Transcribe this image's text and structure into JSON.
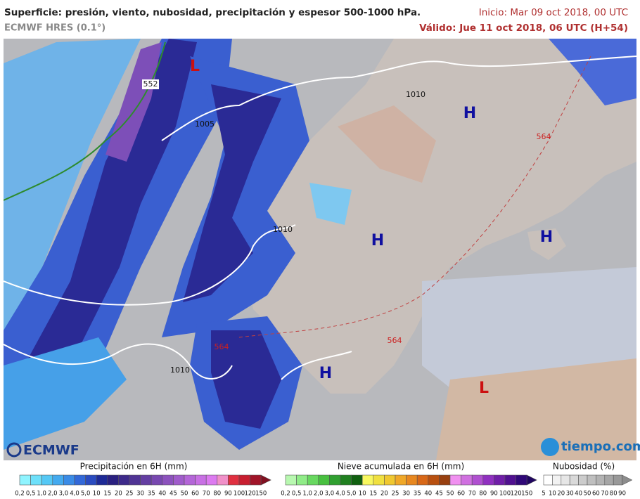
{
  "header": {
    "title": "Superficie: presión, viento, nubosidad, precipitación y espesor 500-1000 hPa.",
    "model": "ECMWF HRES (0.1°)",
    "init": "Inicio: Mar 09 oct 2018, 00 UTC",
    "valid": "Válido: Jue 11 oct 2018, 06 UTC (H+54)"
  },
  "map": {
    "labels": [
      "L",
      "H",
      "H",
      "H",
      "H",
      "L",
      "1010",
      "1005",
      "1010",
      "1010",
      "552",
      "564",
      "564",
      "564"
    ]
  },
  "logos": {
    "ecmwf": "ECMWF",
    "tiempo": "tiempo.com"
  },
  "legend": {
    "precipitation": {
      "title": "Precipitación en 6H (mm)",
      "labels": [
        "0,2",
        "0,5",
        "1,0",
        "2,0",
        "3,0",
        "4,0",
        "5,0",
        "10",
        "15",
        "20",
        "25",
        "30",
        "35",
        "40",
        "45",
        "50",
        "60",
        "70",
        "80",
        "90",
        "100",
        "120",
        "150"
      ]
    },
    "snow": {
      "title": "Nieve acumulada en 6H (mm)",
      "labels": [
        "0,2",
        "0,5",
        "1,0",
        "2,0",
        "3,0",
        "4,0",
        "5,0",
        "10",
        "15",
        "20",
        "25",
        "30",
        "35",
        "40",
        "45",
        "50",
        "60",
        "70",
        "80",
        "90",
        "100",
        "120",
        "150"
      ]
    },
    "cloud": {
      "title": "Nubosidad (%)",
      "labels": [
        "5",
        "10",
        "20",
        "30",
        "40",
        "50",
        "60",
        "70",
        "80",
        "90"
      ]
    }
  }
}
